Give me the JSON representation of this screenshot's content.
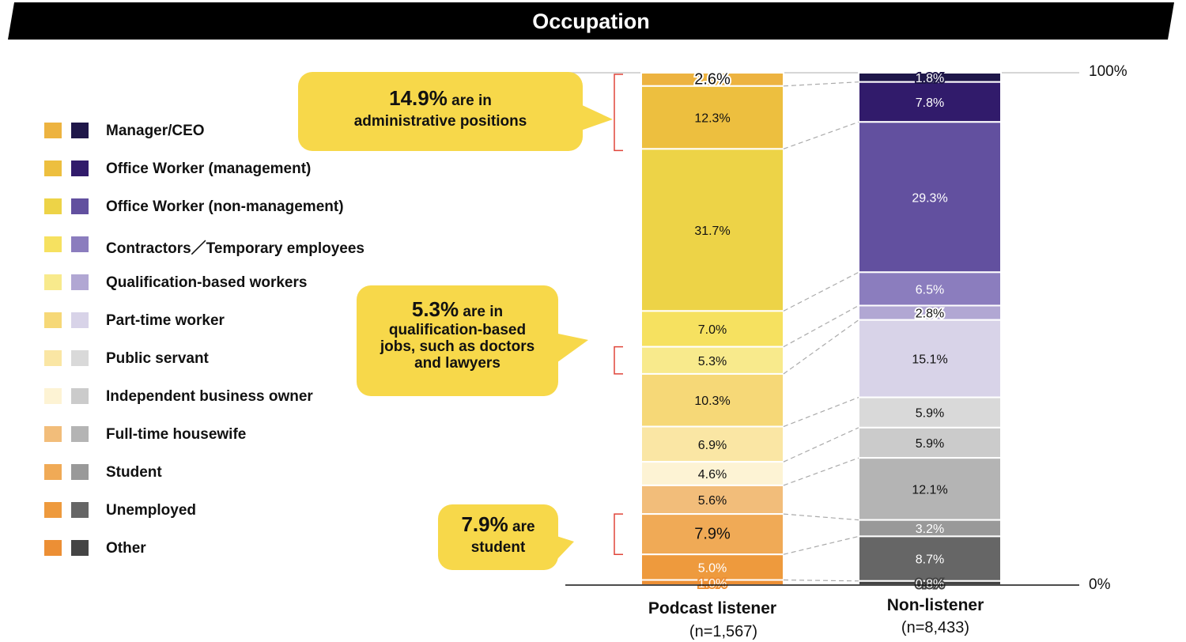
{
  "title": "Occupation",
  "chart_data": {
    "type": "stacked-bar-100",
    "categories": [
      "Podcast listener",
      "Non-listener"
    ],
    "sample_sizes": [
      "(n=1,567)",
      "(n=8,433)"
    ],
    "y_ticks": [
      "100%",
      "0%"
    ],
    "ylim": [
      0,
      100
    ],
    "series": [
      {
        "name": "Manager/CEO",
        "values": [
          2.6,
          1.8
        ],
        "colors": [
          "#EDB340",
          "#1F174A"
        ]
      },
      {
        "name": "Office Worker (management)",
        "values": [
          12.3,
          7.8
        ],
        "colors": [
          "#EDBF3F",
          "#311B6B"
        ]
      },
      {
        "name": "Office Worker (non-management)",
        "values": [
          31.7,
          29.3
        ],
        "colors": [
          "#EDD347",
          "#62509F"
        ]
      },
      {
        "name": "Contractors／Temporary employees",
        "values": [
          7.0,
          6.5
        ],
        "colors": [
          "#F6E160",
          "#8B7DBE"
        ]
      },
      {
        "name": "Qualification-based workers",
        "values": [
          5.3,
          2.8
        ],
        "colors": [
          "#F8EA8C",
          "#B1A7D3"
        ]
      },
      {
        "name": "Part-time worker",
        "values": [
          10.3,
          15.1
        ],
        "colors": [
          "#F6D877",
          "#D8D3E8"
        ]
      },
      {
        "name": "Public servant",
        "values": [
          6.9,
          5.9
        ],
        "colors": [
          "#FAE6A4",
          "#D9D9D9"
        ]
      },
      {
        "name": "Independent business owner",
        "values": [
          4.6,
          5.9
        ],
        "colors": [
          "#FDF3D4",
          "#CBCBCB"
        ]
      },
      {
        "name": "Full-time housewife",
        "values": [
          5.6,
          12.1
        ],
        "colors": [
          "#F2BD7A",
          "#B4B4B4"
        ]
      },
      {
        "name": "Student",
        "values": [
          7.9,
          3.2
        ],
        "colors": [
          "#F0AA56",
          "#999999"
        ]
      },
      {
        "name": "Unemployed",
        "values": [
          5.0,
          8.7
        ],
        "colors": [
          "#EE9A3D",
          "#666666"
        ]
      },
      {
        "name": "Other",
        "values": [
          1.0,
          0.8
        ],
        "colors": [
          "#EC8F35",
          "#444444"
        ]
      }
    ],
    "value_labels": [
      [
        "2.6%",
        "12.3%",
        "31.7%",
        "7.0%",
        "5.3%",
        "10.3%",
        "6.9%",
        "4.6%",
        "5.6%",
        "7.9%",
        "5.0%",
        "1.0%"
      ],
      [
        "1.8%",
        "7.8%",
        "29.3%",
        "6.5%",
        "2.8%",
        "15.1%",
        "5.9%",
        "5.9%",
        "12.1%",
        "3.2%",
        "8.7%",
        "0.8%"
      ]
    ],
    "legend_position": "left"
  },
  "callouts": [
    {
      "big": "14.9%",
      "rest": " are in",
      "line2": "administrative positions",
      "line3": ""
    },
    {
      "big": "5.3%",
      "rest": " are in",
      "line2": "qualification-based",
      "line3": "jobs, such as doctors",
      "line4": "and lawyers"
    },
    {
      "big": "7.9%",
      "rest": " are",
      "line2": "student"
    }
  ],
  "colors": {
    "callout": "#F7D84A",
    "bracket": "#E0453A",
    "banner": "#000000"
  }
}
